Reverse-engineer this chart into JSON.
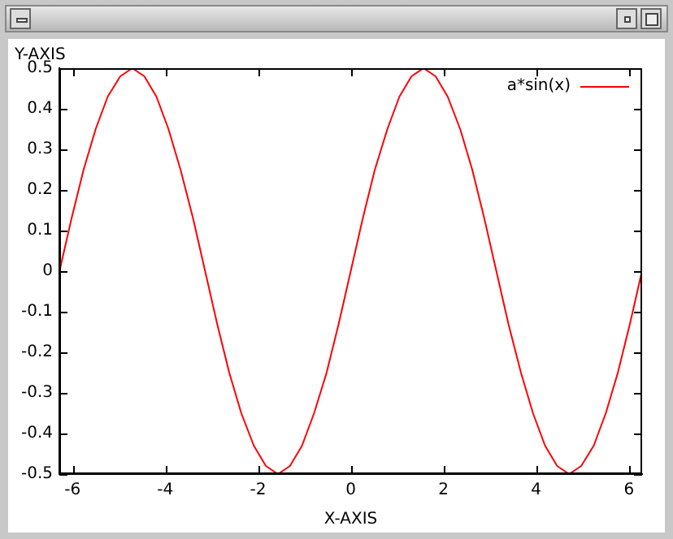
{
  "chart_data": {
    "type": "line",
    "xlabel": "X-AXIS",
    "ylabel": "Y-AXIS",
    "xlim": [
      -6.283,
      6.283
    ],
    "xticks": [
      -6,
      -4,
      -2,
      0,
      2,
      4,
      6
    ],
    "ylim": [
      -0.5,
      0.5
    ],
    "yticks": [
      -0.5,
      -0.4,
      -0.3,
      -0.2,
      -0.1,
      0,
      0.1,
      0.2,
      0.3,
      0.4,
      0.5
    ],
    "grid": false,
    "legend": "top right",
    "marker": "none",
    "line_style": "solid",
    "series": [
      {
        "name": "a*sin(x)",
        "color": "#ff0000",
        "x": [
          -6.28,
          -6.02,
          -5.76,
          -5.5,
          -5.24,
          -4.97,
          -4.71,
          -4.45,
          -4.19,
          -3.93,
          -3.67,
          -3.4,
          -3.14,
          -2.88,
          -2.62,
          -2.36,
          -2.09,
          -1.83,
          -1.57,
          -1.31,
          -1.05,
          -0.79,
          -0.52,
          -0.26,
          0,
          0.26,
          0.52,
          0.79,
          1.05,
          1.31,
          1.57,
          1.83,
          2.09,
          2.36,
          2.62,
          2.88,
          3.14,
          3.4,
          3.67,
          3.93,
          4.19,
          4.45,
          4.71,
          4.97,
          5.24,
          5.5,
          5.76,
          6.02,
          6.28
        ],
        "values": [
          0,
          0.13,
          0.25,
          0.35,
          0.43,
          0.48,
          0.5,
          0.48,
          0.43,
          0.35,
          0.25,
          0.13,
          0,
          -0.13,
          -0.25,
          -0.35,
          -0.43,
          -0.48,
          -0.5,
          -0.48,
          -0.43,
          -0.35,
          -0.25,
          -0.13,
          0,
          0.13,
          0.25,
          0.35,
          0.43,
          0.48,
          0.5,
          0.48,
          0.43,
          0.35,
          0.25,
          0.13,
          0,
          -0.13,
          -0.25,
          -0.35,
          -0.43,
          -0.48,
          -0.5,
          -0.48,
          -0.43,
          -0.35,
          -0.25,
          -0.13,
          0
        ]
      }
    ]
  }
}
